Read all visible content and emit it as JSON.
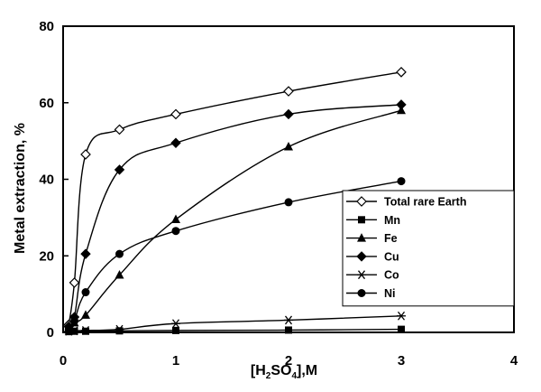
{
  "chart_data": {
    "type": "line",
    "title": "",
    "xlabel": {
      "prefix": "[H",
      "sub1": "2",
      "mid": "SO",
      "sub2": "4",
      "suffix": "],M"
    },
    "ylabel": "Metal extraction, %",
    "xlim": [
      0,
      4
    ],
    "ylim": [
      0,
      80
    ],
    "xticks": [
      0,
      1,
      2,
      3,
      4
    ],
    "yticks": [
      0,
      20,
      40,
      60,
      80
    ],
    "grid": false,
    "legend_position": "right",
    "series": [
      {
        "name": "Total rare Earth",
        "marker": "diamond-open",
        "x": [
          0.05,
          0.1,
          0.2,
          0.5,
          1,
          2,
          3
        ],
        "y": [
          2,
          13,
          46.5,
          53,
          57,
          63,
          68
        ]
      },
      {
        "name": "Mn",
        "marker": "square",
        "x": [
          0.05,
          0.1,
          0.2,
          0.5,
          1,
          2,
          3
        ],
        "y": [
          0.2,
          0.3,
          0.3,
          0.4,
          0.5,
          0.6,
          0.8
        ]
      },
      {
        "name": "Fe",
        "marker": "triangle",
        "x": [
          0.05,
          0.1,
          0.2,
          0.5,
          1,
          2,
          3
        ],
        "y": [
          1,
          2.5,
          4.5,
          15,
          29.5,
          48.5,
          58
        ]
      },
      {
        "name": "Cu",
        "marker": "diamond",
        "x": [
          0.05,
          0.1,
          0.2,
          0.5,
          1,
          2,
          3
        ],
        "y": [
          1.5,
          4,
          20.5,
          42.5,
          49.5,
          57,
          59.5
        ]
      },
      {
        "name": "Co",
        "marker": "asterisk",
        "x": [
          0.05,
          0.1,
          0.2,
          0.5,
          1,
          2,
          3
        ],
        "y": [
          0.3,
          0.4,
          0.5,
          0.8,
          2.3,
          3.2,
          4.3
        ]
      },
      {
        "name": "Ni",
        "marker": "circle",
        "x": [
          0.05,
          0.1,
          0.2,
          0.5,
          1,
          2,
          3
        ],
        "y": [
          0.8,
          3,
          10.5,
          20.5,
          26.5,
          34,
          39.5
        ]
      }
    ]
  }
}
